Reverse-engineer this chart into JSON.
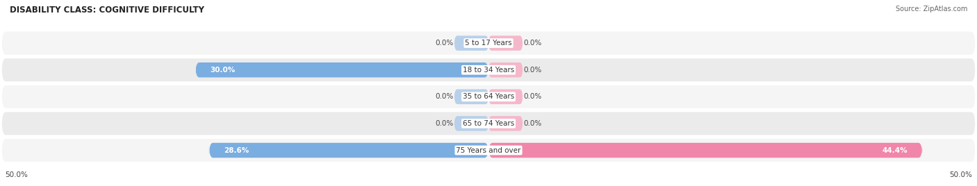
{
  "title": "DISABILITY CLASS: COGNITIVE DIFFICULTY",
  "source": "Source: ZipAtlas.com",
  "categories": [
    "5 to 17 Years",
    "18 to 34 Years",
    "35 to 64 Years",
    "65 to 74 Years",
    "75 Years and over"
  ],
  "male_values": [
    0.0,
    30.0,
    0.0,
    0.0,
    28.6
  ],
  "female_values": [
    0.0,
    0.0,
    0.0,
    0.0,
    44.4
  ],
  "male_color": "#7aade0",
  "female_color": "#f086aa",
  "x_max": 50.0,
  "x_min": -50.0,
  "axis_label_left": "50.0%",
  "axis_label_right": "50.0%",
  "title_fontsize": 8.5,
  "label_fontsize": 7.5,
  "category_fontsize": 7.5,
  "legend_fontsize": 8,
  "source_fontsize": 7,
  "row_colors": [
    "#f5f5f5",
    "#ebebeb"
  ],
  "small_bar_color": "#b8d0ea",
  "small_bar_female_color": "#f5b8ca"
}
